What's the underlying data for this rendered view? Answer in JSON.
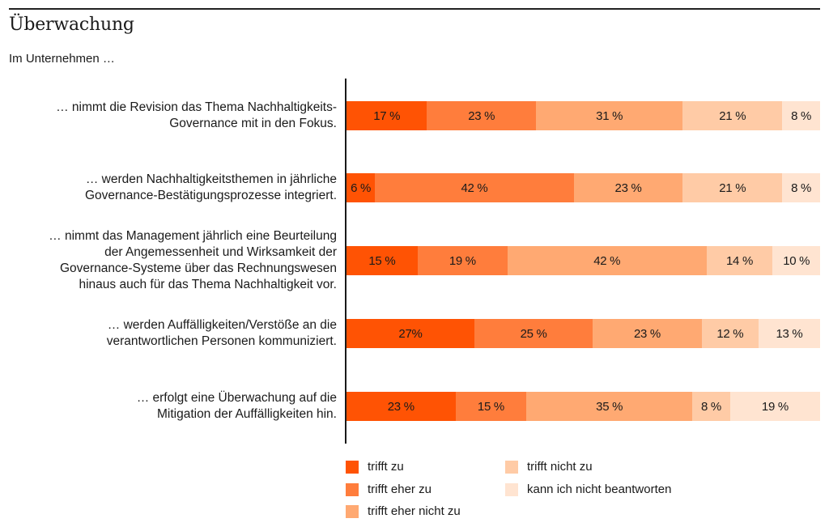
{
  "header": {
    "title": "Überwachung",
    "subtitle": "Im Unternehmen …"
  },
  "chart_data": {
    "type": "bar",
    "orientation": "horizontal",
    "stacked": true,
    "normalized_percent": true,
    "title": "Überwachung",
    "subtitle": "Im Unternehmen …",
    "xlabel": "",
    "ylabel": "",
    "xlim": [
      0,
      100
    ],
    "grid": false,
    "legend_position": "bottom",
    "categories": [
      "… nimmt die Revision das Thema Nachhaltigkeits-\nGovernance mit in den Fokus.",
      "… werden Nachhaltigkeitsthemen in jährliche\nGovernance-Bestätigungsprozesse integriert.",
      "… nimmt das Management jährlich eine Beurteilung\nder Angemessenheit und Wirksamkeit der\nGovernance-Systeme über das Rechnungswesen\nhinaus auch für das Thema Nachhaltigkeit vor.",
      "… werden Auffälligkeiten/Verstöße an die\nverantwortlichen Personen kommuniziert.",
      "… erfolgt eine Überwachung auf die\nMitigation der Auffälligkeiten hin."
    ],
    "series": [
      {
        "name": "trifft zu",
        "color": "#ff5304",
        "values": [
          17,
          6,
          15,
          27,
          23
        ],
        "labels": [
          "17 %",
          "6 %",
          "15 %",
          "27%",
          "23 %"
        ]
      },
      {
        "name": "trifft eher zu",
        "color": "#ff7d3c",
        "values": [
          23,
          42,
          19,
          25,
          15
        ],
        "labels": [
          "23 %",
          "42 %",
          "19 %",
          "25 %",
          "15 %"
        ]
      },
      {
        "name": "trifft eher nicht zu",
        "color": "#ffa972",
        "values": [
          31,
          23,
          42,
          23,
          35
        ],
        "labels": [
          "31 %",
          "23 %",
          "42 %",
          "23 %",
          "35 %"
        ]
      },
      {
        "name": "trifft nicht zu",
        "color": "#ffcba6",
        "values": [
          21,
          21,
          14,
          12,
          8
        ],
        "labels": [
          "21 %",
          "21 %",
          "14 %",
          "12 %",
          "8 %"
        ]
      },
      {
        "name": "kann ich nicht beantworten",
        "color": "#ffe4d1",
        "values": [
          8,
          8,
          10,
          13,
          19
        ],
        "labels": [
          "8 %",
          "8 %",
          "10 %",
          "13 %",
          "19 %"
        ]
      }
    ]
  }
}
